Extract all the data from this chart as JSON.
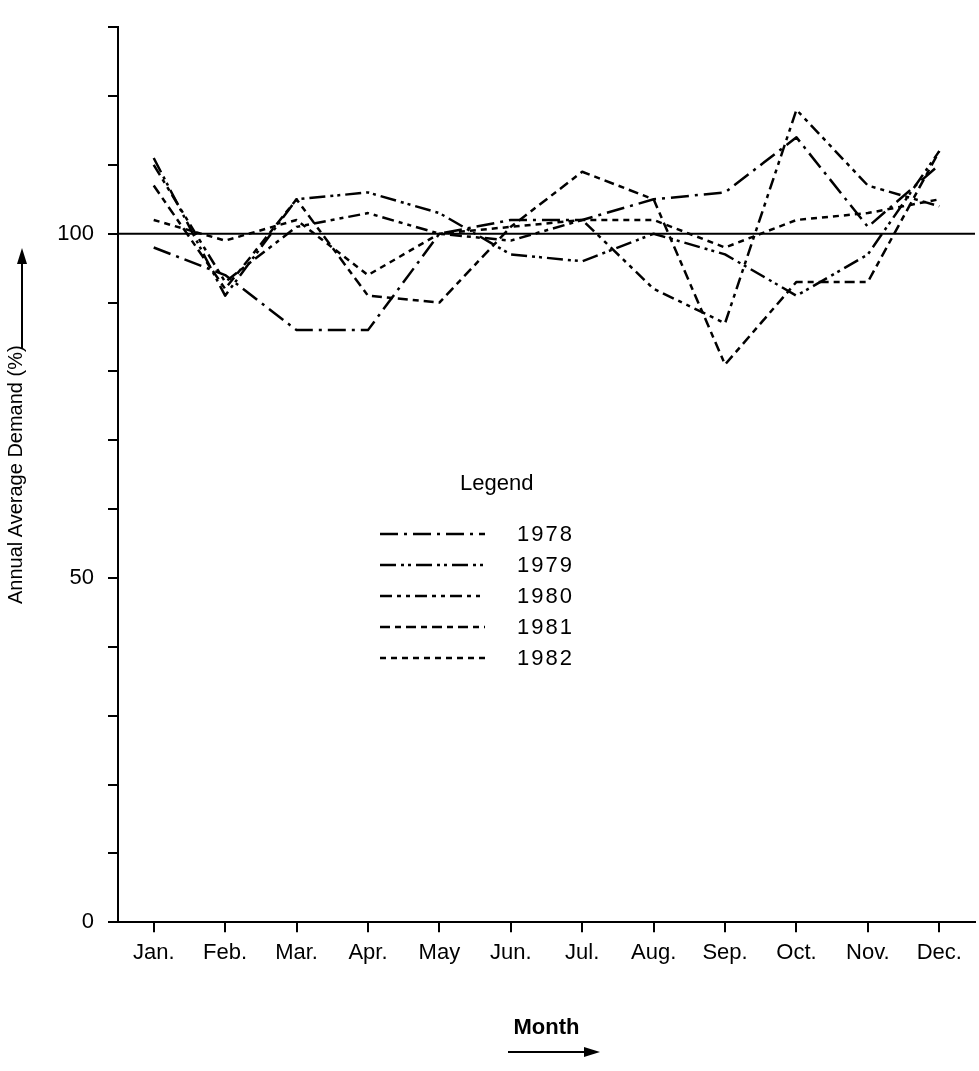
{
  "chart_data": {
    "type": "line",
    "xlabel": "Month",
    "ylabel": "Annual Average Demand (%)",
    "legend_title": "Legend",
    "legend": "center",
    "categories": [
      "Jan.",
      "Feb.",
      "Mar.",
      "Apr.",
      "May",
      "Jun.",
      "Jul.",
      "Aug.",
      "Sep.",
      "Oct.",
      "Nov.",
      "Dec."
    ],
    "ylim": [
      0,
      130
    ],
    "yticks": [
      0,
      {
        "value": 10,
        "label": null
      },
      {
        "value": 20,
        "label": null
      },
      {
        "value": 30,
        "label": null
      },
      {
        "value": 40,
        "label": null
      },
      50,
      {
        "value": 60,
        "label": null
      },
      {
        "value": 70,
        "label": null
      },
      {
        "value": 80,
        "label": null
      },
      {
        "value": 90,
        "label": null
      },
      100,
      {
        "value": 110,
        "label": null
      },
      {
        "value": 120,
        "label": null
      },
      {
        "value": 130,
        "label": null
      }
    ],
    "marker": "none",
    "grid": false,
    "ref_lines": [
      {
        "axis": "y",
        "value": 100,
        "label": null,
        "color": "#000000",
        "line_style": "solid"
      }
    ],
    "series": [
      {
        "name": "1978",
        "color": "#000000",
        "line_style": "dashed",
        "values": [
          98,
          94,
          86,
          86,
          100,
          102,
          102,
          105,
          106,
          114,
          101,
          110
        ]
      },
      {
        "name": "1979",
        "color": "#000000",
        "line_style": "dashed",
        "values": [
          111,
          91,
          105,
          106,
          103,
          97,
          96,
          100,
          97,
          91,
          97,
          112
        ]
      },
      {
        "name": "1980",
        "color": "#000000",
        "line_style": "dashed",
        "values": [
          110,
          93,
          101,
          103,
          100,
          99,
          102,
          92,
          87,
          118,
          107,
          104
        ]
      },
      {
        "name": "1981",
        "color": "#000000",
        "line_style": "dashed",
        "values": [
          107,
          92,
          105,
          91,
          90,
          101,
          109,
          105,
          81,
          93,
          93,
          112
        ]
      },
      {
        "name": "1982",
        "color": "#000000",
        "line_style": "dashed",
        "values": [
          102,
          99,
          102,
          94,
          100,
          101,
          102,
          102,
          98,
          102,
          103,
          105
        ]
      }
    ]
  }
}
